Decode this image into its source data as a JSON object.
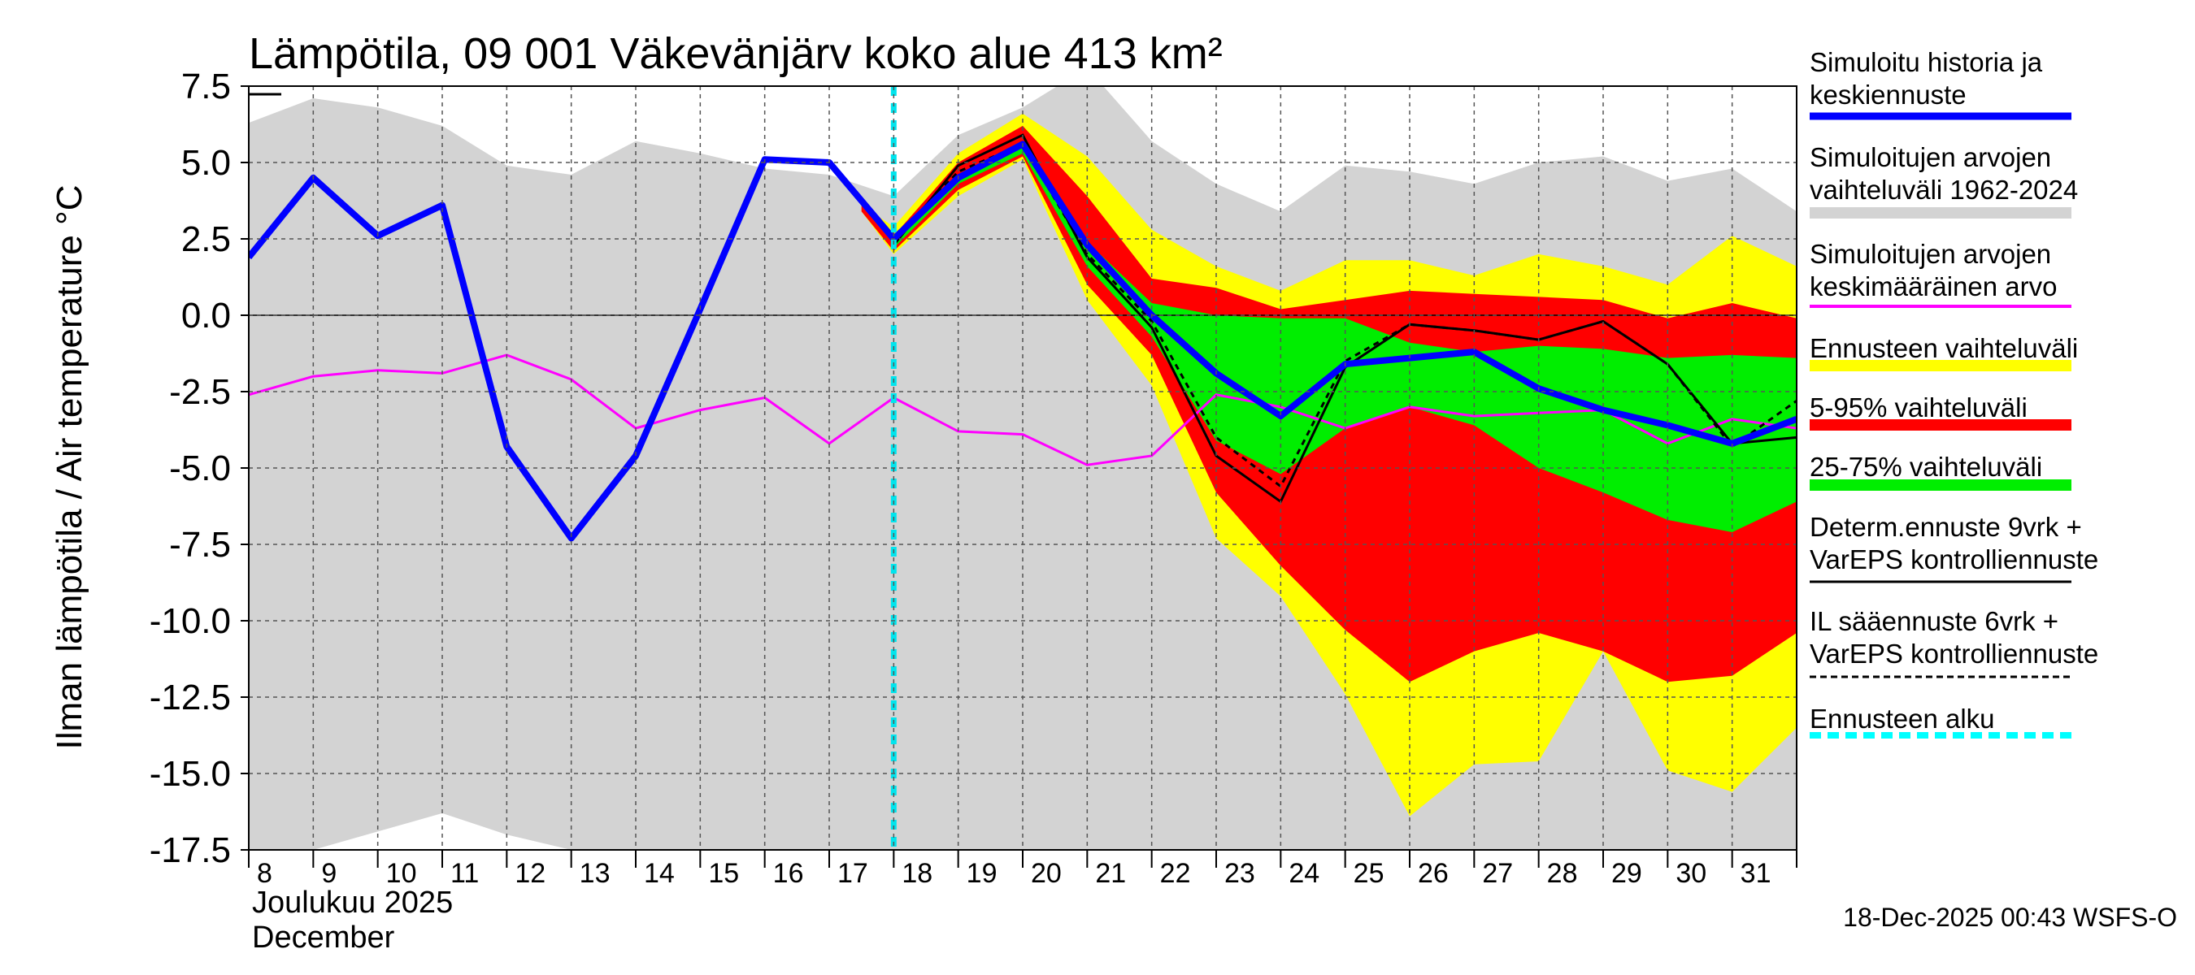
{
  "chart_data": {
    "type": "area",
    "title": "Lämpötila, 09 001 Väkevänjärv koko alue 413 km²",
    "ylabel": "Ilman lämpötila / Air temperature   °C",
    "ylim": [
      -17.5,
      7.5
    ],
    "yticks": [
      7.5,
      5.0,
      2.5,
      0.0,
      -2.5,
      -5.0,
      -7.5,
      -10.0,
      -12.5,
      -15.0,
      -17.5
    ],
    "ytick_labels": [
      "7.5",
      "5.0",
      "2.5",
      "0.0",
      "-2.5",
      "-5.0",
      "-7.5",
      "-10.0",
      "-12.5",
      "-15.0",
      "-17.5"
    ],
    "x_range": [
      8,
      32
    ],
    "x_tick_labels": [
      "8",
      "9",
      "10",
      "11",
      "12",
      "13",
      "14",
      "15",
      "16",
      "17",
      "18",
      "19",
      "20",
      "21",
      "22",
      "23",
      "24",
      "25",
      "26",
      "27",
      "28",
      "29",
      "30",
      "31"
    ],
    "month_label_fi": "Joulukuu  2025",
    "month_label_en": "December",
    "forecast_start": 18,
    "timestamp": "18-Dec-2025 00:43 WSFS-O",
    "history_range": {
      "x": [
        8,
        9,
        10,
        11,
        12,
        13,
        14,
        15,
        16,
        17,
        18,
        19,
        20,
        21,
        22,
        23,
        24,
        25,
        26,
        27,
        28,
        29,
        30,
        31,
        32
      ],
      "upper": [
        6.3,
        7.1,
        6.8,
        6.2,
        4.9,
        4.6,
        5.7,
        5.3,
        4.8,
        4.6,
        3.9,
        5.9,
        6.8,
        8.1,
        5.7,
        4.3,
        3.4,
        4.9,
        4.7,
        4.3,
        5.0,
        5.2,
        4.4,
        4.8,
        3.4
      ],
      "lower": [
        -17.5,
        -17.5,
        -16.9,
        -16.3,
        -17.0,
        -17.5,
        -17.5,
        -17.5,
        -17.5,
        -17.5,
        -17.5,
        -17.5,
        -17.5,
        -17.5,
        -17.5,
        -17.5,
        -17.5,
        -17.5,
        -17.5,
        -17.5,
        -17.5,
        -17.5,
        -17.5,
        -17.5,
        -17.5
      ]
    },
    "forecast_range": {
      "x": [
        17.5,
        18,
        19,
        20,
        21,
        22,
        23,
        24,
        25,
        26,
        27,
        28,
        29,
        30,
        31,
        32
      ],
      "upper": [
        3.6,
        2.9,
        5.3,
        6.6,
        5.2,
        2.8,
        1.6,
        0.8,
        1.8,
        1.8,
        1.3,
        2.0,
        1.6,
        1.0,
        2.6,
        1.6
      ],
      "lower": [
        3.4,
        2.0,
        3.9,
        5.1,
        0.5,
        -2.3,
        -7.3,
        -9.2,
        -12.4,
        -16.4,
        -14.7,
        -14.6,
        -11.0,
        -14.9,
        -15.6,
        -13.5
      ]
    },
    "range_5_95": {
      "x": [
        17.5,
        18,
        19,
        20,
        21,
        22,
        23,
        24,
        25,
        26,
        27,
        28,
        29,
        30,
        31,
        32
      ],
      "upper": [
        3.6,
        2.6,
        5.0,
        6.2,
        3.9,
        1.2,
        0.9,
        0.2,
        0.5,
        0.8,
        0.7,
        0.6,
        0.5,
        -0.1,
        0.4,
        -0.1
      ],
      "lower": [
        3.4,
        2.1,
        4.1,
        5.2,
        1.0,
        -1.3,
        -5.8,
        -8.2,
        -10.3,
        -12.0,
        -11.0,
        -10.4,
        -11.0,
        -12.0,
        -11.8,
        -10.4
      ]
    },
    "range_25_75": {
      "x": [
        18,
        19,
        20,
        21,
        22,
        23,
        24,
        25,
        26,
        27,
        28,
        29,
        30,
        31,
        32
      ],
      "upper": [
        2.5,
        4.6,
        5.7,
        2.4,
        0.4,
        0.0,
        -0.1,
        -0.1,
        -0.9,
        -1.2,
        -1.0,
        -1.1,
        -1.4,
        -1.3,
        -1.4
      ],
      "lower": [
        2.2,
        4.3,
        5.3,
        1.6,
        -0.7,
        -4.1,
        -5.2,
        -3.7,
        -3.0,
        -3.6,
        -5.0,
        -5.8,
        -6.7,
        -7.1,
        -6.1
      ]
    },
    "series": [
      {
        "name": "Simuloitu historia ja keskiennuste",
        "color": "#0000ff",
        "x": [
          8,
          9,
          10,
          11,
          12,
          13,
          14,
          15,
          16,
          17,
          18,
          19,
          20,
          21,
          22,
          23,
          24,
          25,
          26,
          27,
          28,
          29,
          30,
          31,
          32
        ],
        "y": [
          1.9,
          4.5,
          2.6,
          3.6,
          -4.3,
          -7.3,
          -4.6,
          0.2,
          5.1,
          5.0,
          2.5,
          4.5,
          5.6,
          2.3,
          0.0,
          -1.9,
          -3.3,
          -1.6,
          -1.4,
          -1.2,
          -2.4,
          -3.1,
          -3.6,
          -4.2,
          -3.4
        ]
      },
      {
        "name": "Simuloitujen arvojen keskimääräinen arvo",
        "color": "#ff00ff",
        "x": [
          8,
          9,
          10,
          11,
          12,
          13,
          14,
          15,
          16,
          17,
          18,
          19,
          20,
          21,
          22,
          23,
          24,
          25,
          26,
          27,
          28,
          29,
          30,
          31,
          32
        ],
        "y": [
          -2.6,
          -2.0,
          -1.8,
          -1.9,
          -1.3,
          -2.1,
          -3.7,
          -3.1,
          -2.7,
          -4.2,
          -2.7,
          -3.8,
          -3.9,
          -4.9,
          -4.6,
          -2.6,
          -3.0,
          -3.7,
          -3.0,
          -3.3,
          -3.2,
          -3.1,
          -4.2,
          -3.4,
          -3.7
        ]
      },
      {
        "name": "Determ.ennuste 9vrk + VarEPS kontrolliennuste",
        "color": "#000000",
        "x": [
          18,
          19,
          20,
          21,
          22,
          23,
          24,
          25,
          26,
          27,
          28,
          29,
          30,
          31,
          32
        ],
        "y": [
          2.3,
          4.9,
          5.9,
          1.9,
          -0.4,
          -4.6,
          -6.1,
          -1.7,
          -0.3,
          -0.5,
          -0.8,
          -0.2,
          -1.6,
          -4.2,
          -4.0
        ]
      },
      {
        "name": "IL sääennuste 6vrk + VarEPS kontrolliennuste",
        "color": "#000000",
        "x": [
          18,
          19,
          20,
          21,
          22,
          23,
          24,
          25,
          26,
          27,
          28,
          29,
          30,
          31,
          32
        ],
        "y": [
          2.5,
          4.7,
          5.6,
          2.0,
          -0.2,
          -4.0,
          -5.6,
          -1.5,
          -0.3,
          -0.5,
          -0.8,
          -0.2,
          -1.6,
          -4.3,
          -2.8
        ]
      }
    ],
    "legend": [
      {
        "label": "Simuloitu historia ja keskiennuste",
        "color": "#0000ff",
        "style": "thick"
      },
      {
        "label": "Simuloitujen arvojen vaihteluväli 1962-2024",
        "color": "#d3d3d3",
        "style": "band"
      },
      {
        "label": "Simuloitujen arvojen keskimääräinen arvo",
        "color": "#ff00ff",
        "style": "thin"
      },
      {
        "label": "Ennusteen vaihteluväli",
        "color": "#ffff00",
        "style": "band"
      },
      {
        "label": "5-95% vaihteluväli",
        "color": "#ff0000",
        "style": "band"
      },
      {
        "label": "25-75% vaihteluväli",
        "color": "#00ee00",
        "style": "band"
      },
      {
        "label": "Determ.ennuste 9vrk + VarEPS kontrolliennuste",
        "color": "#000000",
        "style": "line"
      },
      {
        "label": "IL sääennuste 6vrk + VarEPS kontrolliennuste",
        "color": "#000000",
        "style": "dashed"
      },
      {
        "label": "Ennusteen alku",
        "color": "#00ffff",
        "style": "cyan-dashed"
      }
    ]
  }
}
